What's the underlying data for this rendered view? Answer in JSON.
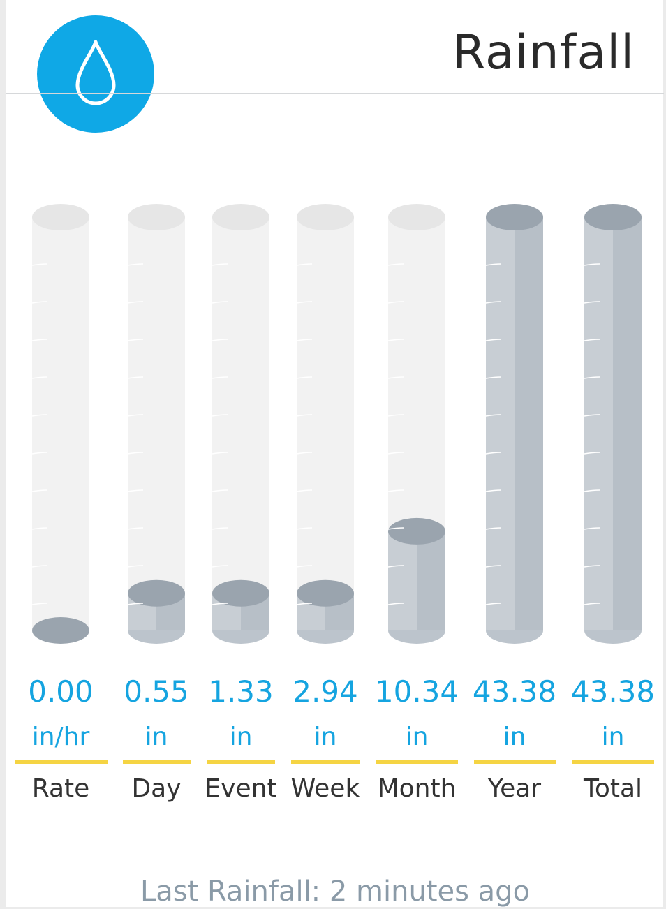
{
  "header": {
    "title": "Rainfall",
    "icon": "water-drop-icon",
    "badge_color": "#0fa8e6"
  },
  "colors": {
    "value_text": "#15a4e0",
    "underline": "#f5d443",
    "tube_empty": "#f2f2f2",
    "tube_fill": "#c8ced4",
    "tube_fill_top": "#9aa4ae"
  },
  "gauges": [
    {
      "value": "0.00",
      "unit": "in/hr",
      "label": "Rate",
      "fill": 0.0
    },
    {
      "value": "0.55",
      "unit": "in",
      "label": "Day",
      "fill": 0.09
    },
    {
      "value": "1.33",
      "unit": "in",
      "label": "Event",
      "fill": 0.09
    },
    {
      "value": "2.94",
      "unit": "in",
      "label": "Week",
      "fill": 0.09
    },
    {
      "value": "10.34",
      "unit": "in",
      "label": "Month",
      "fill": 0.24
    },
    {
      "value": "43.38",
      "unit": "in",
      "label": "Year",
      "fill": 1.0
    },
    {
      "value": "43.38",
      "unit": "in",
      "label": "Total",
      "fill": 1.0
    }
  ],
  "footer": {
    "last_rainfall": "Last Rainfall: 2 minutes ago"
  }
}
